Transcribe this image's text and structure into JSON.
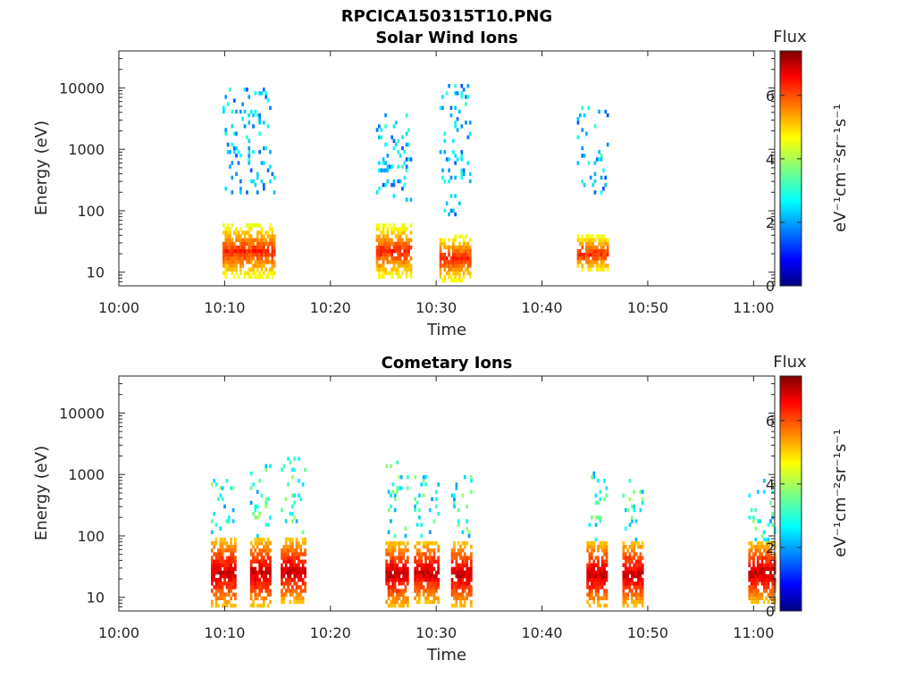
{
  "figure_title": "RPCICA150315T10.PNG",
  "chart_data": [
    {
      "type": "heatmap",
      "title": "Solar Wind Ions",
      "xlabel": "Time",
      "ylabel": "Energy (eV)",
      "xlim": [
        "10:00",
        "11:02"
      ],
      "ylim": [
        6,
        40000
      ],
      "yscale": "log",
      "grid": false,
      "xticks": [
        "10:00",
        "10:10",
        "10:20",
        "10:30",
        "10:40",
        "10:50",
        "11:00"
      ],
      "yticks": [
        "10",
        "100",
        "1000",
        "10000"
      ],
      "colorbar": {
        "label": "Flux",
        "unit": "eV⁻¹cm⁻²sr⁻¹s⁻¹",
        "range": [
          0,
          7.4
        ],
        "ticks": [
          "0",
          "2",
          "4",
          "6"
        ],
        "colormap": "jet"
      },
      "value_note": "log10 flux",
      "bursts": [
        {
          "start": "10:09.8",
          "end": "10:14.6",
          "high_energy": [
            200,
            10000
          ],
          "high_flux": [
            1.5,
            3.2
          ],
          "low_energy": [
            8,
            60
          ],
          "low_flux": [
            3.5,
            6.5
          ]
        },
        {
          "start": "10:24.3",
          "end": "10:27.5",
          "high_energy": [
            150,
            4000
          ],
          "high_flux": [
            1.5,
            3.2
          ],
          "low_energy": [
            8,
            60
          ],
          "low_flux": [
            3.5,
            6.5
          ]
        },
        {
          "start": "10:30.3",
          "end": "10:33.2",
          "high_energy": [
            80,
            12000
          ],
          "high_flux": [
            1.5,
            3.2
          ],
          "low_energy": [
            7,
            40
          ],
          "low_flux": [
            3.5,
            6.5
          ]
        },
        {
          "start": "10:43.3",
          "end": "10:46.2",
          "high_energy": [
            200,
            6000
          ],
          "high_flux": [
            1.5,
            3.2
          ],
          "low_energy": [
            10,
            40
          ],
          "low_flux": [
            3.5,
            6.5
          ]
        }
      ]
    },
    {
      "type": "heatmap",
      "title": "Cometary Ions",
      "xlabel": "Time",
      "ylabel": "Energy (eV)",
      "xlim": [
        "10:00",
        "11:02"
      ],
      "ylim": [
        6,
        40000
      ],
      "yscale": "log",
      "grid": false,
      "xticks": [
        "10:00",
        "10:10",
        "10:20",
        "10:30",
        "10:40",
        "10:50",
        "11:00"
      ],
      "yticks": [
        "10",
        "100",
        "1000",
        "10000"
      ],
      "colorbar": {
        "label": "Flux",
        "unit": "eV⁻¹cm⁻²sr⁻¹s⁻¹",
        "range": [
          0,
          7.4
        ],
        "ticks": [
          "0",
          "2",
          "4",
          "6"
        ],
        "colormap": "jet"
      },
      "value_note": "log10 flux",
      "bursts": [
        {
          "start": "10:08.7",
          "end": "10:11.0",
          "high_energy": [
            50,
            800
          ],
          "high_flux": [
            2.0,
            4.0
          ],
          "low_energy": [
            7,
            90
          ],
          "low_flux": [
            4.0,
            7.2
          ]
        },
        {
          "start": "10:12.4",
          "end": "10:14.2",
          "high_energy": [
            60,
            1500
          ],
          "high_flux": [
            2.0,
            4.0
          ],
          "low_energy": [
            7,
            90
          ],
          "low_flux": [
            4.0,
            7.2
          ]
        },
        {
          "start": "10:15.3",
          "end": "10:17.5",
          "high_energy": [
            60,
            2000
          ],
          "high_flux": [
            2.0,
            4.0
          ],
          "low_energy": [
            8,
            90
          ],
          "low_flux": [
            4.0,
            7.2
          ]
        },
        {
          "start": "10:25.2",
          "end": "10:27.3",
          "high_energy": [
            60,
            1800
          ],
          "high_flux": [
            2.0,
            4.0
          ],
          "low_energy": [
            7,
            80
          ],
          "low_flux": [
            4.0,
            7.2
          ]
        },
        {
          "start": "10:27.9",
          "end": "10:30.2",
          "high_energy": [
            60,
            1000
          ],
          "high_flux": [
            2.0,
            4.0
          ],
          "low_energy": [
            8,
            80
          ],
          "low_flux": [
            4.0,
            7.2
          ]
        },
        {
          "start": "10:31.4",
          "end": "10:33.4",
          "high_energy": [
            60,
            1000
          ],
          "high_flux": [
            2.0,
            4.0
          ],
          "low_energy": [
            7,
            80
          ],
          "low_flux": [
            4.0,
            7.2
          ]
        },
        {
          "start": "10:44.2",
          "end": "10:46.2",
          "high_energy": [
            60,
            1100
          ],
          "high_flux": [
            2.0,
            4.0
          ],
          "low_energy": [
            7,
            80
          ],
          "low_flux": [
            4.0,
            7.2
          ]
        },
        {
          "start": "10:47.6",
          "end": "10:49.6",
          "high_energy": [
            60,
            800
          ],
          "high_flux": [
            2.0,
            4.0
          ],
          "low_energy": [
            7,
            80
          ],
          "low_flux": [
            4.0,
            7.2
          ]
        },
        {
          "start": "10:59.5",
          "end": "11:02.0",
          "high_energy": [
            40,
            900
          ],
          "high_flux": [
            2.0,
            4.0
          ],
          "low_energy": [
            8,
            80
          ],
          "low_flux": [
            4.0,
            7.2
          ]
        }
      ]
    }
  ]
}
